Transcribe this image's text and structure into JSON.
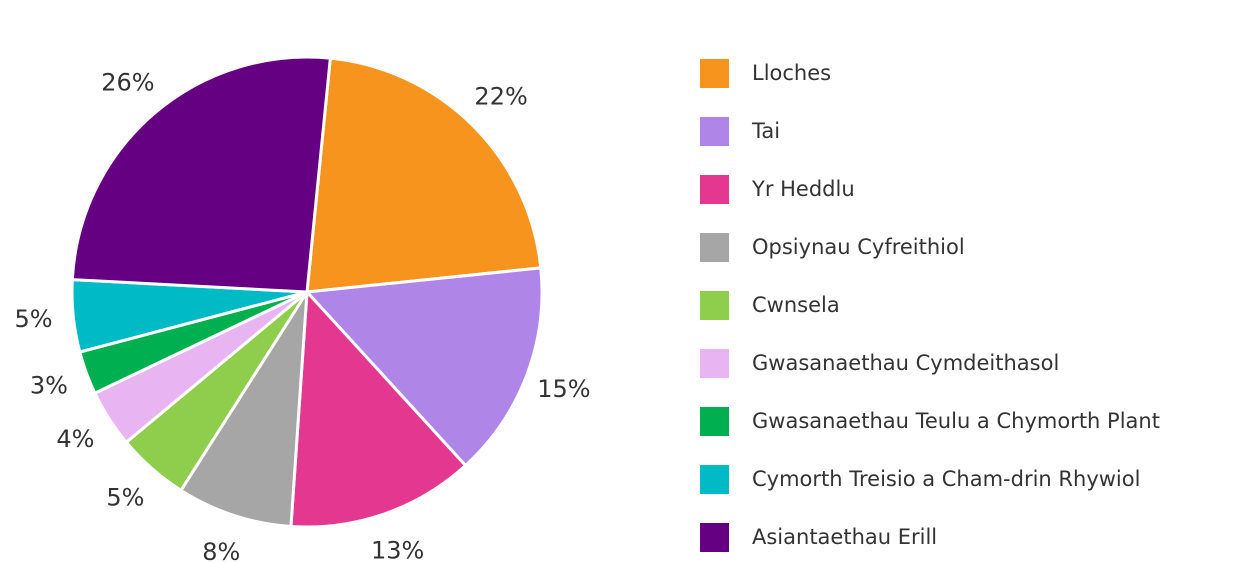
{
  "chart_data": {
    "type": "pie",
    "categories": [
      "Lloches",
      "Tai",
      "Yr Heddlu",
      "Opsiynau Cyfreithiol",
      "Cwnsela",
      "Gwasanaethau Cymdeithasol",
      "Gwasanaethau Teulu a Chymorth Plant",
      "Cymorth Treisio a Cham-drin Rhywiol",
      "Asiantaethau Erill"
    ],
    "values": [
      22,
      15,
      13,
      8,
      5,
      4,
      3,
      5,
      26
    ],
    "value_labels": [
      "22%",
      "15%",
      "13%",
      "8%",
      "5%",
      "4%",
      "3%",
      "5%",
      "26%"
    ],
    "colors": [
      "#f7941d",
      "#b085e8",
      "#e43790",
      "#a6a6a6",
      "#8fce4c",
      "#e8b5f2",
      "#00b050",
      "#00bac6",
      "#660082"
    ],
    "legend": "right"
  }
}
